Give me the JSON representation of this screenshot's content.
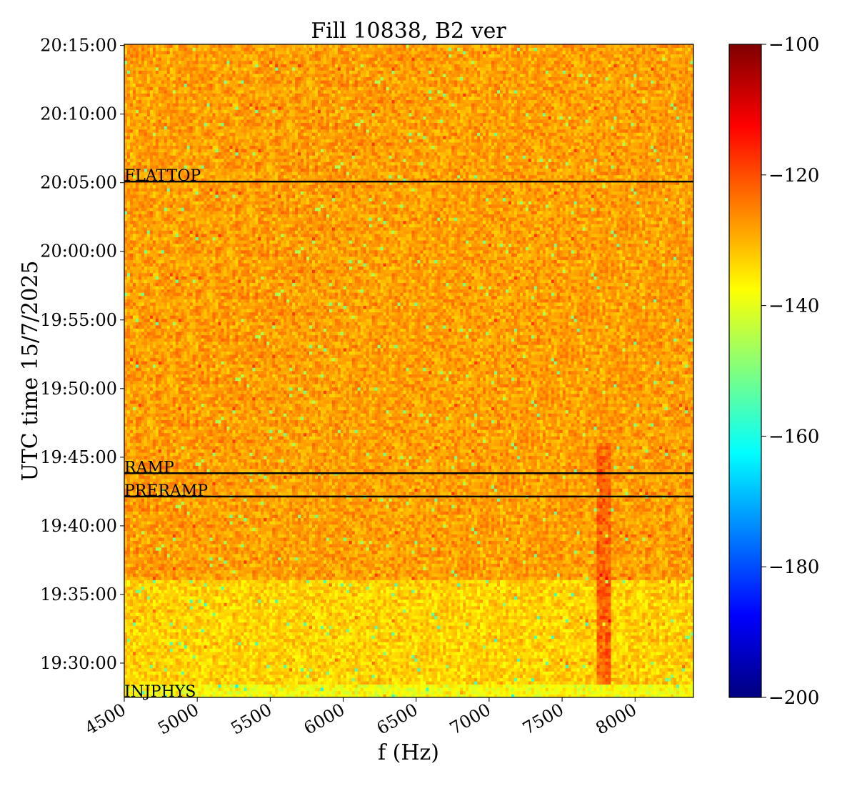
{
  "chart_data": {
    "type": "heatmap",
    "title": "Fill 10838, B2 ver",
    "xlabel": "f (Hz)",
    "ylabel": "UTC time 15/7/2025",
    "x_ticks": [
      "4500",
      "5000",
      "5500",
      "6000",
      "6500",
      "7000",
      "7500",
      "8000"
    ],
    "x_tick_values": [
      4500,
      5000,
      5500,
      6000,
      6500,
      7000,
      7500,
      8000
    ],
    "xlim": [
      4500,
      8400
    ],
    "y_ticks": [
      "19:30:00",
      "19:35:00",
      "19:40:00",
      "19:45:00",
      "19:50:00",
      "19:55:00",
      "20:00:00",
      "20:05:00",
      "20:10:00",
      "20:15:00"
    ],
    "y_tick_values": [
      "19:30:00",
      "19:35:00",
      "19:40:00",
      "19:45:00",
      "19:50:00",
      "19:55:00",
      "20:00:00",
      "20:05:00",
      "20:10:00",
      "20:15:00"
    ],
    "ylim": [
      "19:27:30",
      "20:15:05"
    ],
    "colorbar": {
      "colormap": "jet",
      "vmin": -200,
      "vmax": -100,
      "ticks": [
        "−100",
        "−120",
        "−140",
        "−160",
        "−180",
        "−200"
      ],
      "tick_values": [
        -100,
        -120,
        -140,
        -160,
        -180,
        -200
      ]
    },
    "annotations": [
      {
        "label": "FLATTOP",
        "time": "20:05:05"
      },
      {
        "label": "RAMP",
        "time": "19:43:50"
      },
      {
        "label": "PRERAMP",
        "time": "19:42:08"
      },
      {
        "label": "INJPHYS",
        "time": "19:27:30"
      }
    ],
    "background_level_db": -128,
    "features": [
      {
        "description": "quieter band before RAMP",
        "time_range": [
          "19:27:30",
          "19:36:00"
        ],
        "level_db": -133
      },
      {
        "description": "low-level INJPHYS segment",
        "time_range": [
          "19:27:30",
          "19:28:30"
        ],
        "level_db": -138
      },
      {
        "description": "enhanced line near 7800 Hz",
        "frequency_hz": 7780,
        "time_range": [
          "19:28:30",
          "19:46:00"
        ],
        "level_db": -122
      }
    ]
  }
}
